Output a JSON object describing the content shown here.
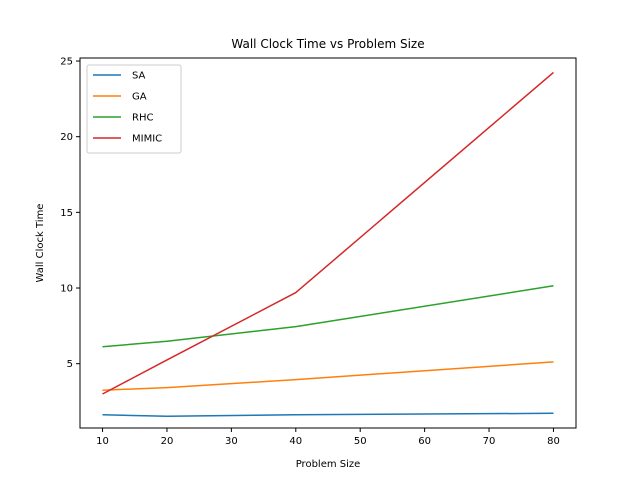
{
  "chart_data": {
    "type": "line",
    "title": "Wall Clock Time vs Problem Size",
    "xlabel": "Problem Size",
    "ylabel": "Wall Clock Time",
    "x": [
      10,
      20,
      40,
      80
    ],
    "xlim": [
      6.5,
      83.5
    ],
    "ylim": [
      0.75,
      25.2
    ],
    "xticks": [
      "10",
      "20",
      "30",
      "40",
      "50",
      "60",
      "70",
      "80"
    ],
    "yticks": [
      "5",
      "10",
      "15",
      "20",
      "25"
    ],
    "grid": false,
    "legend_position": "top-left",
    "series": [
      {
        "name": "SA",
        "color": "#1f77b4",
        "values": [
          1.62,
          1.52,
          1.62,
          1.72
        ]
      },
      {
        "name": "GA",
        "color": "#ff7f0e",
        "values": [
          3.25,
          3.42,
          3.95,
          5.12
        ]
      },
      {
        "name": "RHC",
        "color": "#2ca02c",
        "values": [
          6.12,
          6.48,
          7.45,
          10.15
        ]
      },
      {
        "name": "MIMIC",
        "color": "#d62728",
        "values": [
          3.0,
          5.25,
          9.7,
          24.25
        ]
      }
    ]
  }
}
